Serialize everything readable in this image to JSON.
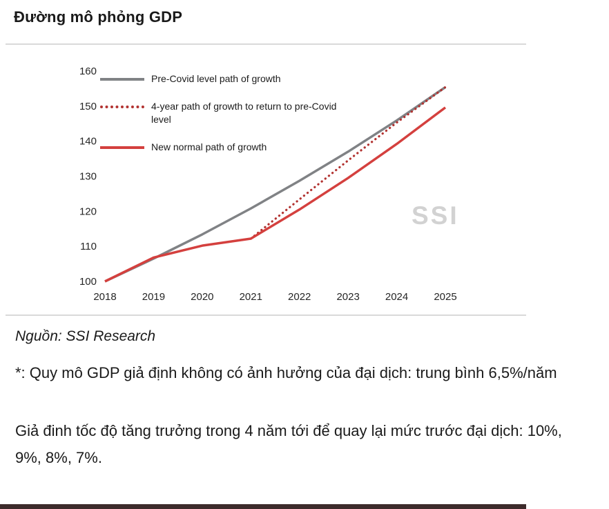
{
  "page": {
    "title": "Đường mô phỏng GDP",
    "source": "Nguồn: SSI Research",
    "note1": "*: Quy mô GDP giả định không có ảnh hưởng của đại dịch: trung bình 6,5%/năm",
    "note2": "Giả đinh tốc độ tăng trưởng trong 4 năm tới để quay lại mức trước đại dịch: 10%, 9%, 8%, 7%.",
    "watermark": "SSI"
  },
  "colors": {
    "divider": "#d9d9d9",
    "watermark": "#d2d2d2",
    "footerbar": "#3d2b2b",
    "gray_series": "#808285",
    "red_series": "#d4403e"
  },
  "chart_data": {
    "type": "line",
    "title": "",
    "xlabel": "",
    "ylabel": "",
    "x": [
      "2018",
      "2019",
      "2020",
      "2021",
      "2022",
      "2023",
      "2024",
      "2025"
    ],
    "ylim": [
      100,
      160
    ],
    "yticks": [
      100,
      110,
      120,
      130,
      140,
      150,
      160
    ],
    "grid": false,
    "legend_position": "top-left",
    "series": [
      {
        "id": "pre-covid",
        "name": "Pre-Covid level path of growth",
        "style": "solid",
        "color": "#808285",
        "growth_note": "6.5%/year",
        "values": [
          100,
          106.5,
          113.4,
          120.8,
          128.7,
          137.0,
          145.9,
          155.4
        ]
      },
      {
        "id": "return-path",
        "name": "4-year path of growth to return to pre-Covid level",
        "style": "dotted",
        "color": "#b23230",
        "growth_note": "10%, 9%, 8%, 7%",
        "values": [
          null,
          null,
          null,
          112.2,
          123.4,
          134.5,
          145.3,
          155.4
        ]
      },
      {
        "id": "new-normal",
        "name": "New normal path of growth",
        "style": "solid",
        "color": "#d4403e",
        "values": [
          100,
          106.8,
          110.2,
          112.2,
          120.5,
          129.5,
          139.2,
          149.6
        ]
      }
    ]
  }
}
